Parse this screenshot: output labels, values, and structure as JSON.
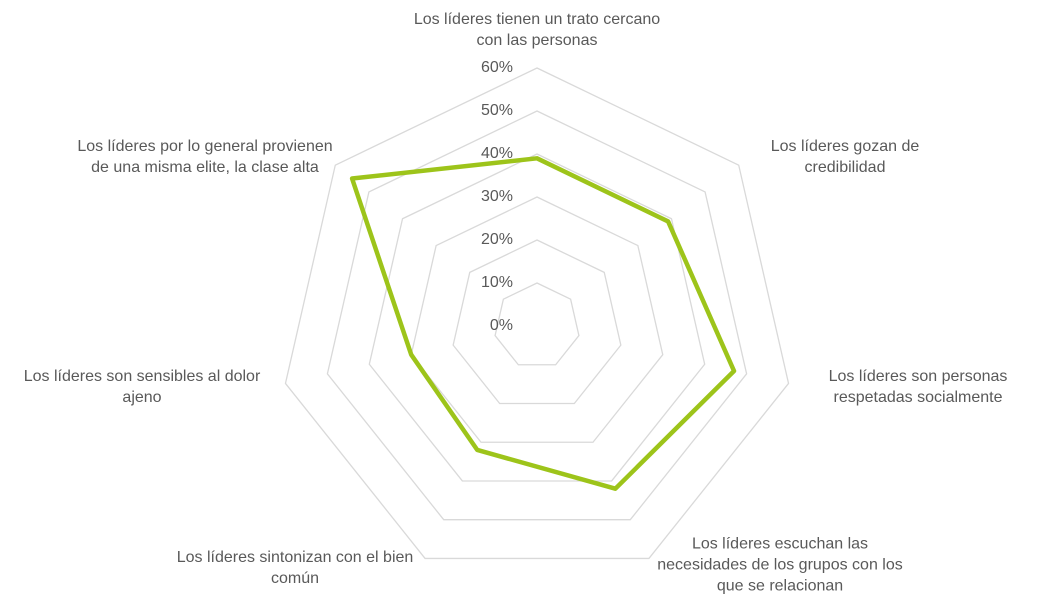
{
  "chart_data": {
    "type": "radar",
    "categories": [
      "Los líderes tienen un trato cercano con las personas",
      "Los líderes gozan de credibilidad",
      "Los líderes son personas respetadas socialmente",
      "Los líderes escuchan las necesidades de los grupos con los que se relacionan",
      "Los líderes sintonizan con el bien común",
      "Los líderes son sensibles al dolor ajeno",
      "Los líderes por lo general provienen de una misma elite, la clase alta"
    ],
    "values": [
      39,
      39,
      47,
      42,
      32,
      30,
      55
    ],
    "color": "#9dc41a",
    "ylim": [
      0,
      60
    ],
    "yticks": [
      {
        "value": 0,
        "label": "0%"
      },
      {
        "value": 10,
        "label": "10%"
      },
      {
        "value": 20,
        "label": "20%"
      },
      {
        "value": 30,
        "label": "30%"
      },
      {
        "value": 40,
        "label": "40%"
      },
      {
        "value": 50,
        "label": "50%"
      },
      {
        "value": 60,
        "label": "60%"
      }
    ],
    "grid": true
  }
}
